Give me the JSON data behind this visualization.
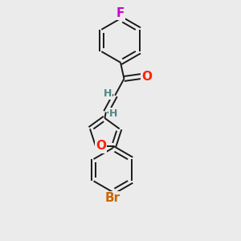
{
  "background_color": "#ebebeb",
  "bond_color": "#1a1a1a",
  "atom_colors": {
    "F": "#cc00cc",
    "O": "#ff2200",
    "Br": "#cc6600",
    "H": "#4a8888",
    "C": "#1a1a1a"
  },
  "font_size_large": 11,
  "font_size_small": 9,
  "line_width": 1.4,
  "dbo": 0.01,
  "fig_size": [
    3.0,
    3.0
  ],
  "dpi": 100
}
